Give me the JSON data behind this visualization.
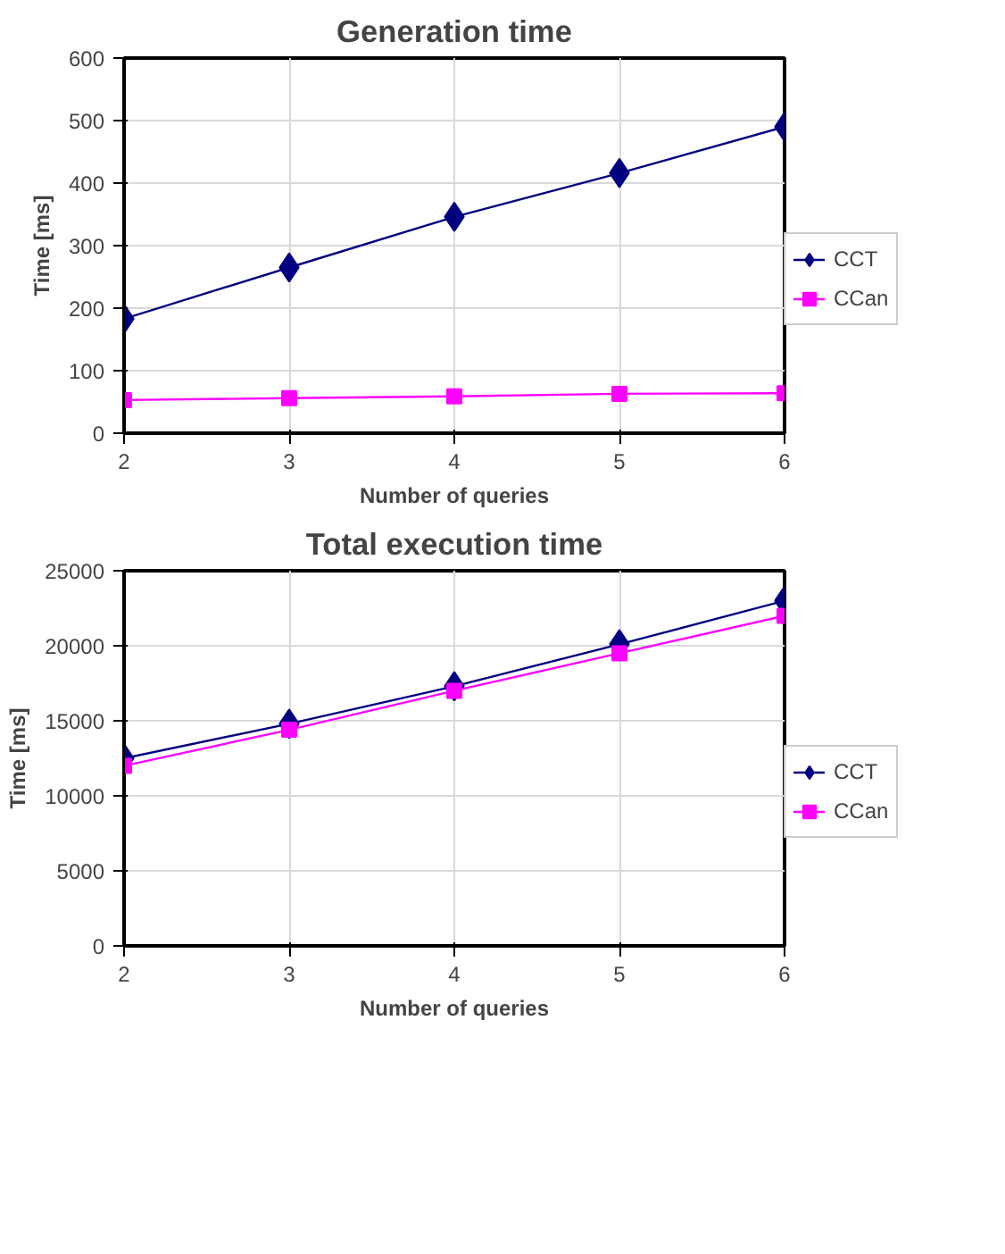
{
  "chart_data": [
    {
      "type": "line",
      "title": "Generation time",
      "xlabel": "Number of queries",
      "ylabel": "Time [ms]",
      "x": [
        2,
        3,
        4,
        5,
        6
      ],
      "xlim": [
        2,
        6
      ],
      "xticks": [
        2,
        3,
        4,
        5,
        6
      ],
      "ylim": [
        0,
        600
      ],
      "yticks": [
        0,
        100,
        200,
        300,
        400,
        500,
        600
      ],
      "grid": true,
      "legend": "right",
      "series": [
        {
          "name": "CCT",
          "color": "#000080",
          "marker": "diamond",
          "values": [
            183,
            265,
            346,
            416,
            490
          ]
        },
        {
          "name": "CCan",
          "color": "#ff00ff",
          "marker": "square",
          "values": [
            53,
            56,
            59,
            63,
            64
          ]
        }
      ]
    },
    {
      "type": "line",
      "title": "Total execution time",
      "xlabel": "Number of queries",
      "ylabel": "Time [ms]",
      "x": [
        2,
        3,
        4,
        5,
        6
      ],
      "xlim": [
        2,
        6
      ],
      "xticks": [
        2,
        3,
        4,
        5,
        6
      ],
      "ylim": [
        0,
        25000
      ],
      "yticks": [
        0,
        5000,
        10000,
        15000,
        20000,
        25000
      ],
      "grid": true,
      "legend": "right",
      "series": [
        {
          "name": "CCT",
          "color": "#000080",
          "marker": "diamond",
          "values": [
            12500,
            14800,
            17300,
            20100,
            23000
          ]
        },
        {
          "name": "CCan",
          "color": "#ff00ff",
          "marker": "square",
          "values": [
            12000,
            14400,
            17000,
            19500,
            22000
          ]
        }
      ]
    }
  ]
}
